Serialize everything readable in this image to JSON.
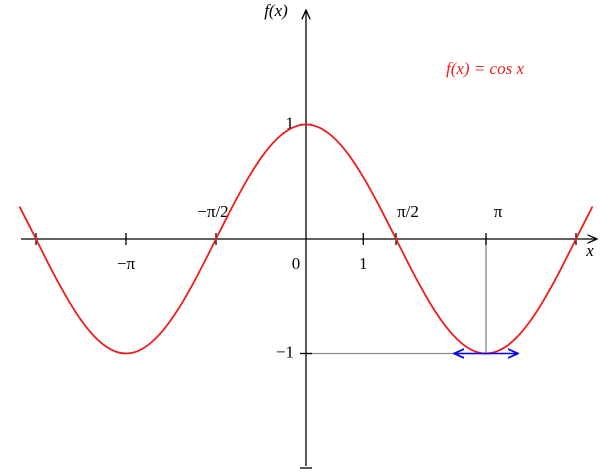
{
  "chart_data": {
    "type": "line",
    "annotation": "f(x) = cos x",
    "x_label": "x",
    "y_label": "f(x)",
    "x": [
      -5,
      -4.75,
      -4.5,
      -4.25,
      -4,
      -3.75,
      -3.5,
      -3.25,
      -3,
      -2.75,
      -2.5,
      -2.25,
      -2,
      -1.75,
      -1.5,
      -1.25,
      -1,
      -0.75,
      -0.5,
      -0.25,
      0,
      0.25,
      0.5,
      0.75,
      1,
      1.25,
      1.5,
      1.75,
      2,
      2.25,
      2.5,
      2.75,
      3,
      3.25,
      3.5,
      3.75,
      4,
      4.25,
      4.5,
      4.75,
      5
    ],
    "series": [
      {
        "name": "f(x) = cos x",
        "color": "#ee1c1c",
        "values": [
          0.284,
          0.038,
          -0.211,
          -0.446,
          -0.654,
          -0.82,
          -0.936,
          -0.994,
          -0.99,
          -0.924,
          -0.801,
          -0.628,
          -0.416,
          -0.178,
          0.071,
          0.315,
          0.54,
          0.732,
          0.878,
          0.969,
          1,
          0.969,
          0.878,
          0.732,
          0.54,
          0.315,
          0.071,
          -0.178,
          -0.416,
          -0.628,
          -0.801,
          -0.924,
          -0.99,
          -0.994,
          -0.936,
          -0.82,
          -0.654,
          -0.446,
          -0.211,
          0.038,
          0.284
        ]
      }
    ],
    "xlim": [
      -5,
      5
    ],
    "ylim": [
      -2,
      2
    ],
    "xticks": [
      {
        "value": -4.712,
        "label": null
      },
      {
        "value": -3.1416,
        "label": "−π"
      },
      {
        "value": -1.5708,
        "label": "−π/2"
      },
      0,
      1,
      {
        "value": 1.5708,
        "label": "π/2"
      },
      {
        "value": 3.1416,
        "label": "π"
      },
      {
        "value": 4.712,
        "label": null
      }
    ],
    "yticks": [
      {
        "value": -2,
        "label": null
      },
      {
        "value": -1,
        "label": "−1"
      },
      1
    ],
    "tangent_color": "#0000ee",
    "guide_color": "#888888"
  }
}
